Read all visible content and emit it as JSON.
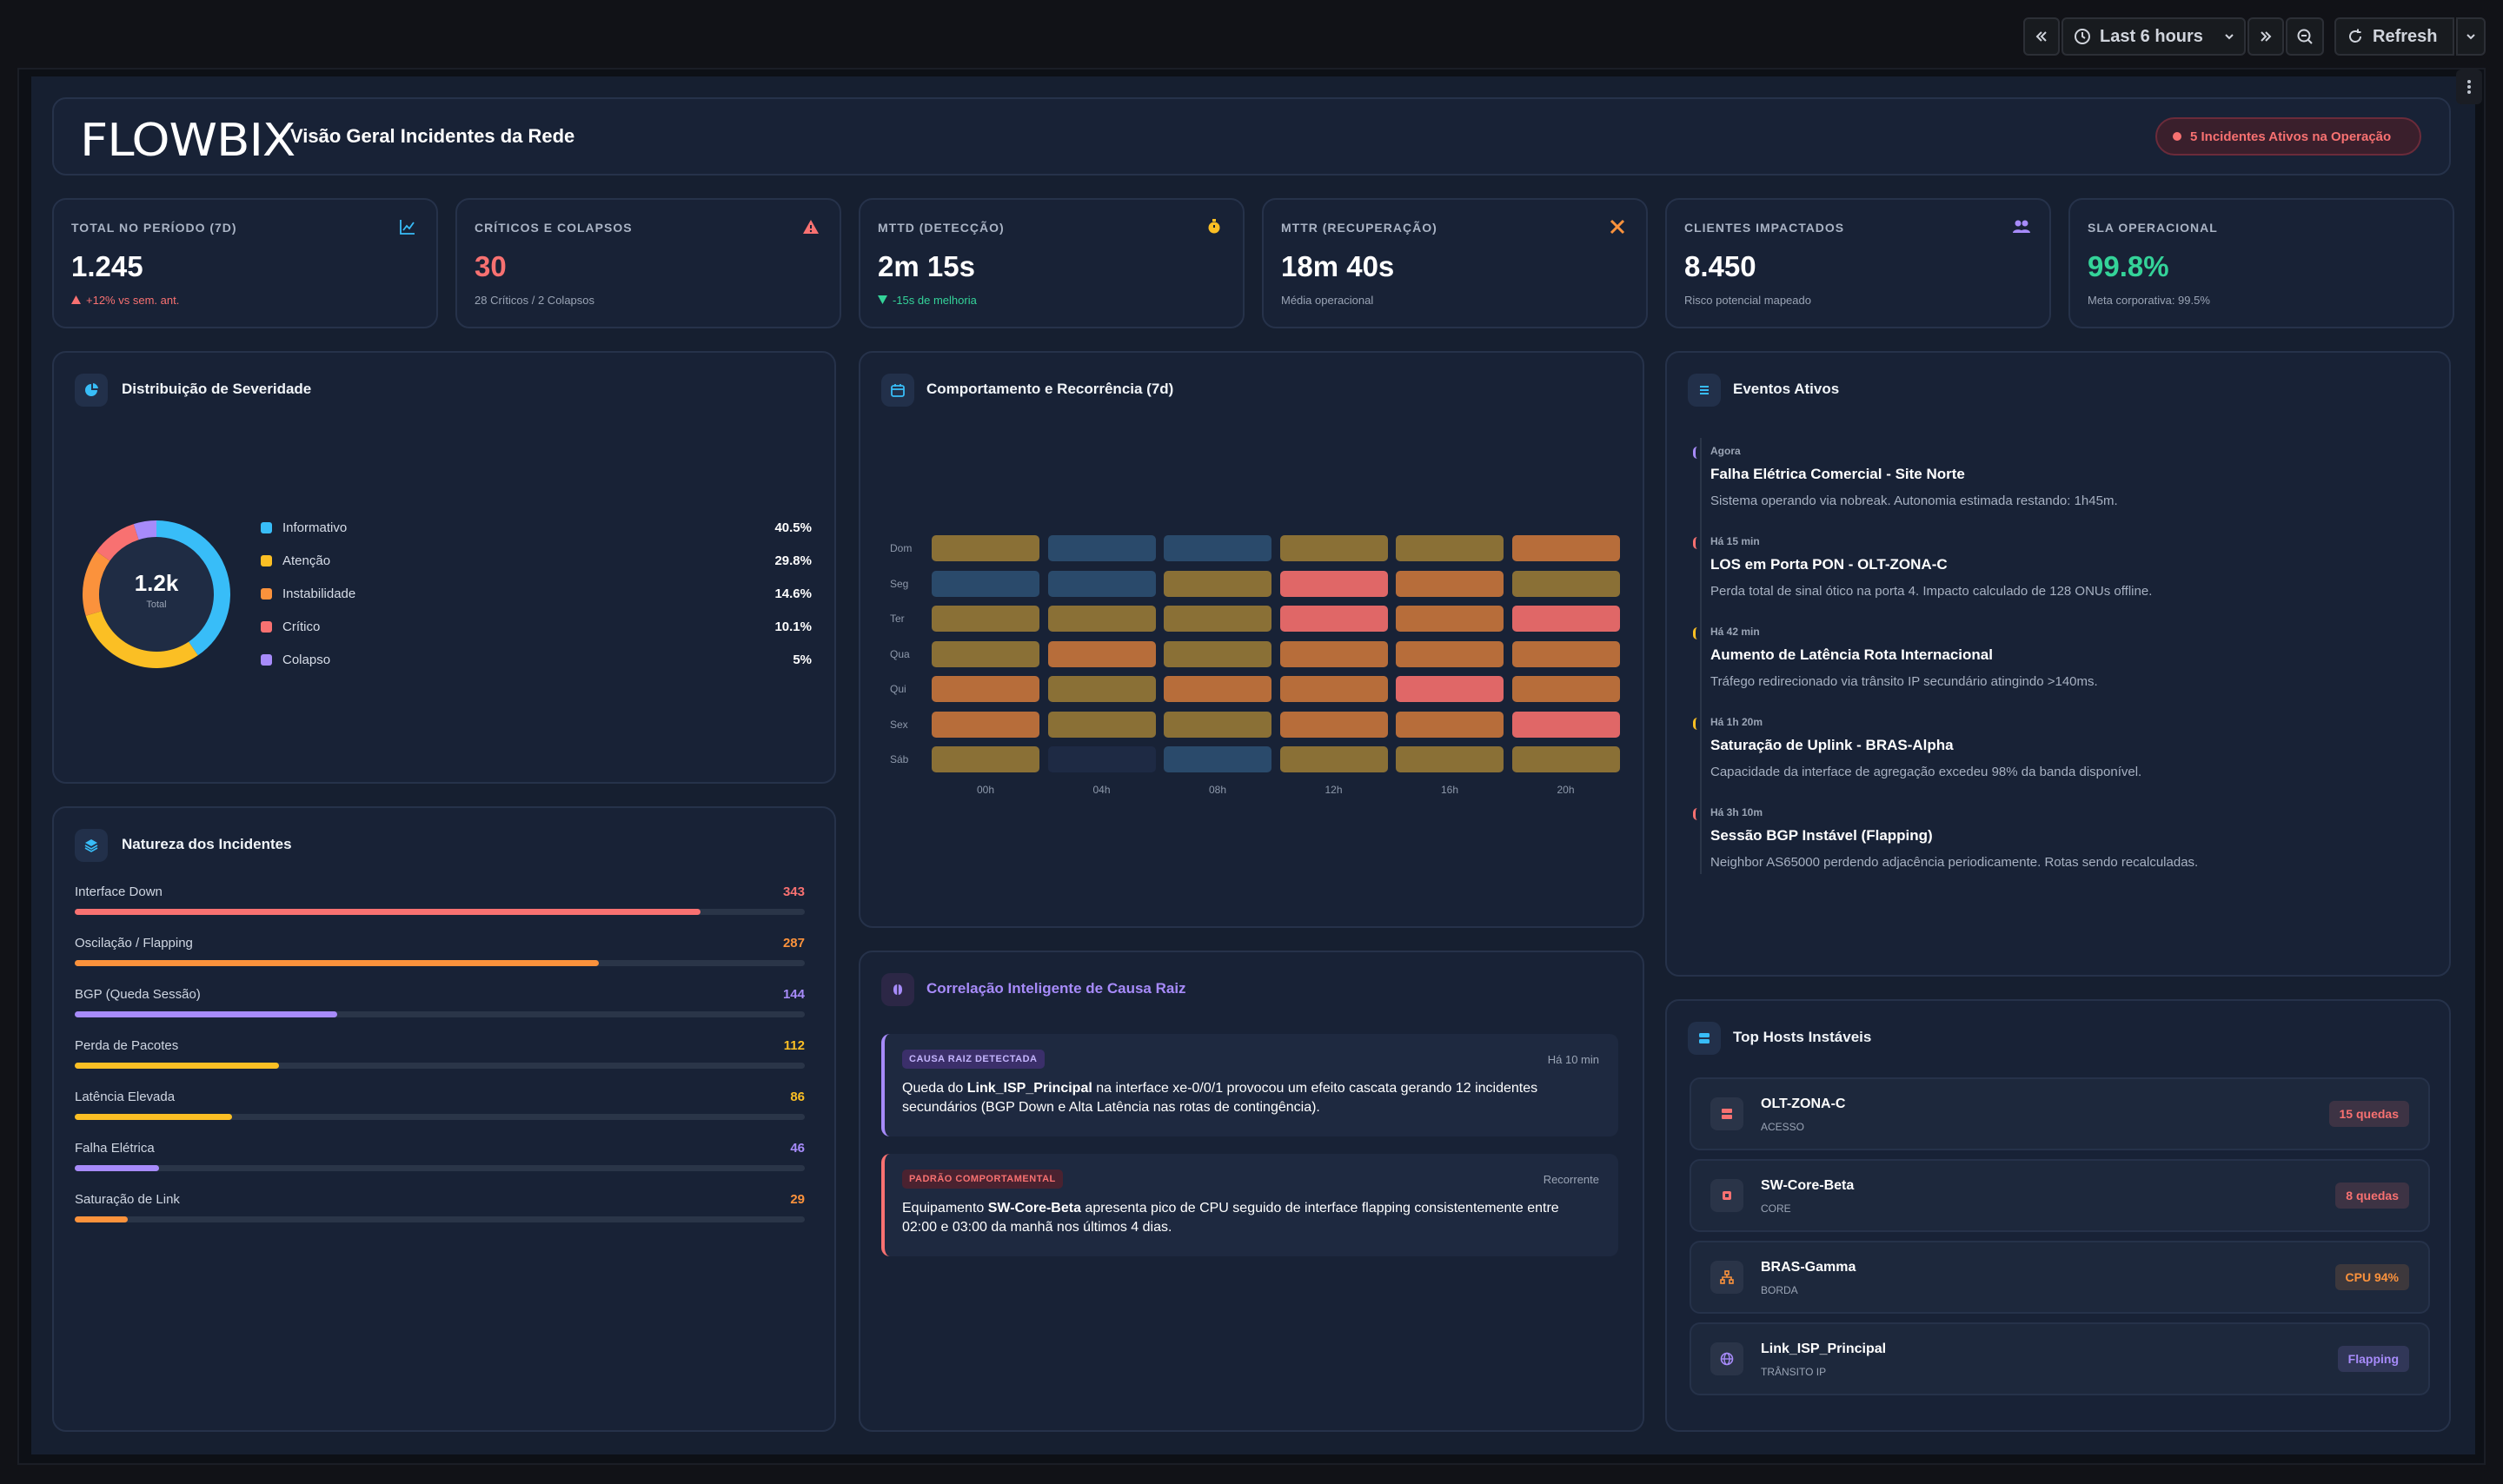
{
  "toolbar": {
    "time_range": "Last 6 hours",
    "refresh_label": "Refresh"
  },
  "header": {
    "logo": "FLOWBIX",
    "title": "Visão Geral Incidentes da Rede",
    "alert_badge": "5 Incidentes Ativos na Operação"
  },
  "kpis": [
    {
      "label": "TOTAL NO PERÍODO (7D)",
      "value": "1.245",
      "sub": "+12% vs sem. ant.",
      "value_color": "#ffffff",
      "sub_color": "#f87171",
      "icon": "chart-line-icon"
    },
    {
      "label": "CRÍTICOS E COLAPSOS",
      "value": "30",
      "sub": "28 Críticos / 2 Colapsos",
      "value_color": "#f87171",
      "sub_color": "#9aa4b5",
      "icon": "warning-icon"
    },
    {
      "label": "MTTD (DETECÇÃO)",
      "value": "2m 15s",
      "sub": "-15s de melhoria",
      "value_color": "#ffffff",
      "sub_color": "#34d399",
      "icon": "stopwatch-icon"
    },
    {
      "label": "MTTR (RECUPERAÇÃO)",
      "value": "18m 40s",
      "sub": "Média operacional",
      "value_color": "#ffffff",
      "sub_color": "#9aa4b5",
      "icon": "tools-icon"
    },
    {
      "label": "CLIENTES IMPACTADOS",
      "value": "8.450",
      "sub": "Risco potencial mapeado",
      "value_color": "#ffffff",
      "sub_color": "#9aa4b5",
      "icon": "users-icon"
    },
    {
      "label": "SLA OPERACIONAL",
      "value": "99.8%",
      "sub": "Meta corporativa: 99.5%",
      "value_color": "#34d399",
      "sub_color": "#9aa4b5",
      "icon": ""
    }
  ],
  "severity": {
    "title": "Distribuição de Severidade",
    "center_value": "1.2k",
    "center_label": "Total",
    "items": [
      {
        "label": "Informativo",
        "pct": "40.5%",
        "value": 40.5,
        "color": "#38bdf8"
      },
      {
        "label": "Atenção",
        "pct": "29.8%",
        "value": 29.8,
        "color": "#fbbf24"
      },
      {
        "label": "Instabilidade",
        "pct": "14.6%",
        "value": 14.6,
        "color": "#fb923c"
      },
      {
        "label": "Crítico",
        "pct": "10.1%",
        "value": 10.1,
        "color": "#f87171"
      },
      {
        "label": "Colapso",
        "pct": "5%",
        "value": 5,
        "color": "#a78bfa"
      }
    ]
  },
  "nature": {
    "title": "Natureza dos Incidentes",
    "max": 400,
    "items": [
      {
        "label": "Interface Down",
        "value": 343,
        "color": "#f87171"
      },
      {
        "label": "Oscilação / Flapping",
        "value": 287,
        "color": "#fb923c"
      },
      {
        "label": "BGP (Queda Sessão)",
        "value": 144,
        "color": "#a78bfa"
      },
      {
        "label": "Perda de Pacotes",
        "value": 112,
        "color": "#fbbf24"
      },
      {
        "label": "Latência Elevada",
        "value": 86,
        "color": "#fbbf24"
      },
      {
        "label": "Falha Elétrica",
        "value": 46,
        "color": "#a78bfa"
      },
      {
        "label": "Saturação de Link",
        "value": 29,
        "color": "#fb923c"
      }
    ]
  },
  "heatmap": {
    "title": "Comportamento e Recorrência (7d)",
    "rows": [
      "Dom",
      "Seg",
      "Ter",
      "Qua",
      "Qui",
      "Sex",
      "Sáb"
    ],
    "cols": [
      "00h",
      "04h",
      "08h",
      "12h",
      "16h",
      "20h"
    ],
    "levels": [
      [
        2,
        1,
        1,
        2,
        2,
        3
      ],
      [
        1,
        1,
        2,
        4,
        3,
        2
      ],
      [
        2,
        2,
        2,
        4,
        3,
        4
      ],
      [
        2,
        3,
        2,
        3,
        3,
        3
      ],
      [
        3,
        2,
        3,
        3,
        4,
        3
      ],
      [
        3,
        2,
        2,
        3,
        3,
        4
      ],
      [
        2,
        0,
        1,
        2,
        2,
        2
      ]
    ],
    "palette": [
      "#1e2a44",
      "#2a4a6b",
      "#8a7036",
      "#b76d3a",
      "#e06767"
    ]
  },
  "events": {
    "title": "Eventos Ativos",
    "items": [
      {
        "time": "Agora",
        "title": "Falha Elétrica Comercial - Site Norte",
        "desc": "Sistema operando via nobreak. Autonomia estimada restando: 1h45m.",
        "color": "#a78bfa"
      },
      {
        "time": "Há 15 min",
        "title": "LOS em Porta PON - OLT-ZONA-C",
        "desc": "Perda total de sinal ótico na porta 4. Impacto calculado de 128 ONUs offline.",
        "color": "#f87171"
      },
      {
        "time": "Há 42 min",
        "title": "Aumento de Latência Rota Internacional",
        "desc": "Tráfego redirecionado via trânsito IP secundário atingindo >140ms.",
        "color": "#fbbf24"
      },
      {
        "time": "Há 1h 20m",
        "title": "Saturação de Uplink - BRAS-Alpha",
        "desc": "Capacidade da interface de agregação excedeu 98% da banda disponível.",
        "color": "#fbbf24"
      },
      {
        "time": "Há 3h 10m",
        "title": "Sessão BGP Instável (Flapping)",
        "desc": "Neighbor AS65000 perdendo adjacência periodicamente. Rotas sendo recalculadas.",
        "color": "#f87171"
      }
    ]
  },
  "correlation": {
    "title": "Correlação Inteligente de Causa Raiz",
    "items": [
      {
        "tag": "CAUSA RAIZ DETECTADA",
        "time": "Há 10 min",
        "prefix": "Queda do ",
        "bold": "Link_ISP_Principal",
        "line1_rest": " na interface xe-0/0/1 provocou um efeito cascata gerando 12 incidentes",
        "line2": "secundários (BGP Down e Alta Latência nas rotas de contingência)."
      },
      {
        "tag": "PADRÃO COMPORTAMENTAL",
        "time": "Recorrente",
        "prefix": "Equipamento ",
        "bold": "SW-Core-Beta",
        "line1_rest": " apresenta pico de CPU seguido de interface flapping consistentemente entre",
        "line2": "02:00 e 03:00 da manhã nos últimos 4 dias."
      }
    ]
  },
  "hosts": {
    "title": "Top Hosts Instáveis",
    "items": [
      {
        "name": "OLT-ZONA-C",
        "role": "ACESSO",
        "badge": "15 quedas",
        "badge_color": "#f87171",
        "icon": "server-icon"
      },
      {
        "name": "SW-Core-Beta",
        "role": "CORE",
        "badge": "8 quedas",
        "badge_color": "#f87171",
        "icon": "chip-icon"
      },
      {
        "name": "BRAS-Gamma",
        "role": "BORDA",
        "badge": "CPU 94%",
        "badge_color": "#fb923c",
        "icon": "network-icon"
      },
      {
        "name": "Link_ISP_Principal",
        "role": "TRÂNSITO IP",
        "badge": "Flapping",
        "badge_color": "#a78bfa",
        "icon": "globe-icon"
      }
    ]
  }
}
